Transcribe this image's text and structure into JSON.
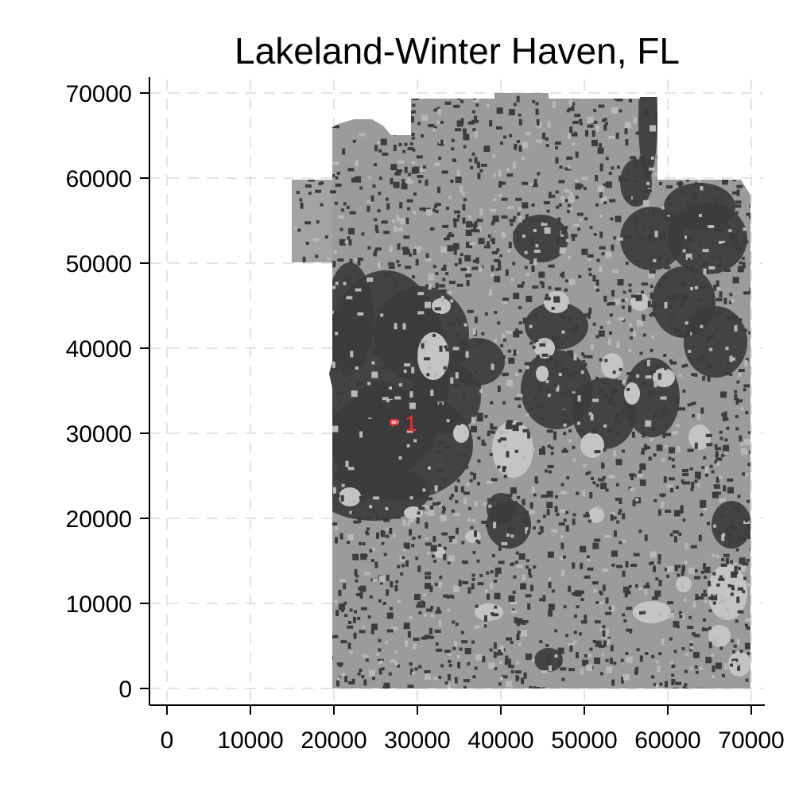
{
  "chart_data": {
    "type": "map",
    "title": "Lakeland-Winter Haven, FL",
    "xlabel": "",
    "ylabel": "",
    "xlim": [
      -2000,
      72000
    ],
    "ylim": [
      -2000,
      72000
    ],
    "x_ticks": [
      "0",
      "10000",
      "20000",
      "30000",
      "40000",
      "50000",
      "60000",
      "70000"
    ],
    "y_ticks": [
      "0",
      "10000",
      "20000",
      "30000",
      "40000",
      "50000",
      "60000",
      "70000"
    ],
    "grid": true,
    "legend": "none",
    "colors": {
      "background_land": "#9b9b9b",
      "urban_dense": "#3c3c3c",
      "water": "#c4c4c4",
      "marker": "#ff2a2a",
      "grid": "#e4e4e4"
    },
    "annotations": [
      {
        "label": "1",
        "x": 28500,
        "y": 31200
      }
    ],
    "marker_point": {
      "x": 27200,
      "y": 31300
    }
  }
}
